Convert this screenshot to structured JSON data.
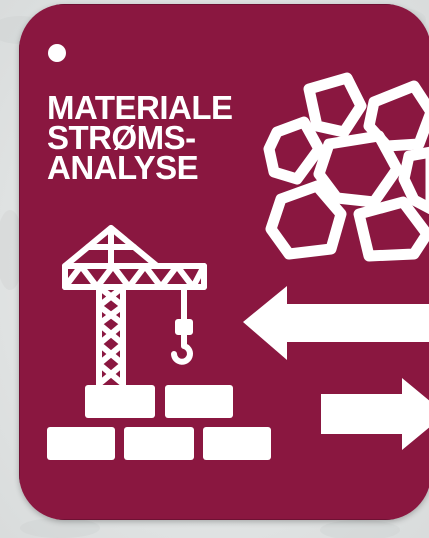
{
  "title_lines": [
    "MATERIALE",
    "STRØMS-",
    "ANALYSE"
  ],
  "colors": {
    "card": "#8a1740",
    "foreground": "#ffffff",
    "background": "#e4e6e6"
  },
  "icons": [
    "hole-icon",
    "stones-icon",
    "crane-icon",
    "bricks-icon",
    "arrow-left-icon",
    "arrow-right-icon"
  ]
}
